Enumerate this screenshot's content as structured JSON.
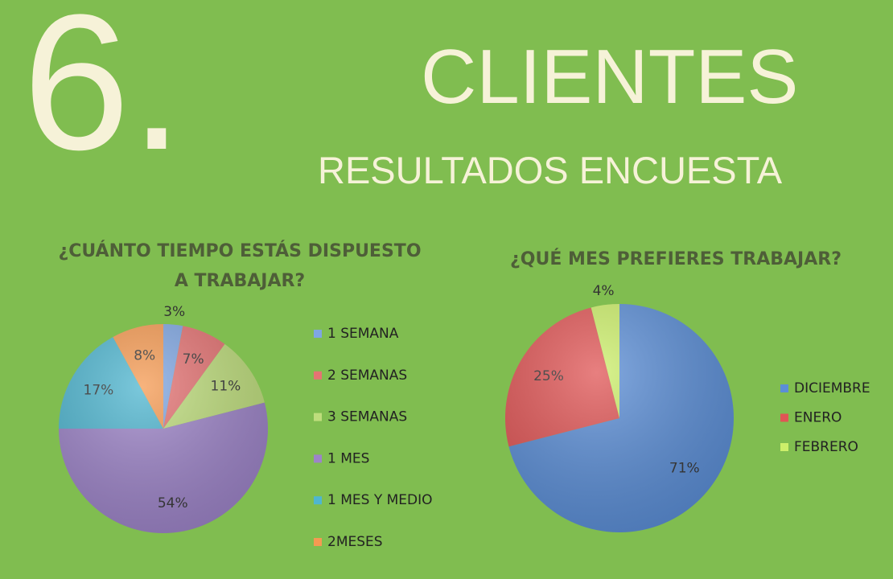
{
  "header": {
    "number": "6.",
    "title": "CLIENTES",
    "subtitle": "RESULTADOS ENCUESTA"
  },
  "chart_data": [
    {
      "type": "pie",
      "title": "¿CUÁNTO TIEMPO ESTÁS DISPUESTO A TRABAJAR?",
      "categories": [
        "1 SEMANA",
        "2 SEMANAS",
        "3 SEMANAS",
        "1 MES",
        "1 MES Y MEDIO",
        "2MESES"
      ],
      "values": [
        3,
        7,
        11,
        54,
        17,
        8
      ],
      "value_labels": [
        "3%",
        "7%",
        "11%",
        "54%",
        "17%",
        "8%"
      ],
      "colors": [
        "#7fa6e2",
        "#e57373",
        "#bedd7c",
        "#9d84c8",
        "#4fb6d0",
        "#f59a52"
      ],
      "legend": "right"
    },
    {
      "type": "pie",
      "title": "¿QUÉ MES PREFIERES TRABAJAR?",
      "categories": [
        "DICIEMBRE",
        "ENERO",
        "FEBRERO"
      ],
      "values": [
        71,
        25,
        4
      ],
      "value_labels": [
        "71%",
        "25%",
        "4%"
      ],
      "colors": [
        "#5b8ed6",
        "#e05555",
        "#ccef6a"
      ],
      "legend": "right"
    }
  ]
}
